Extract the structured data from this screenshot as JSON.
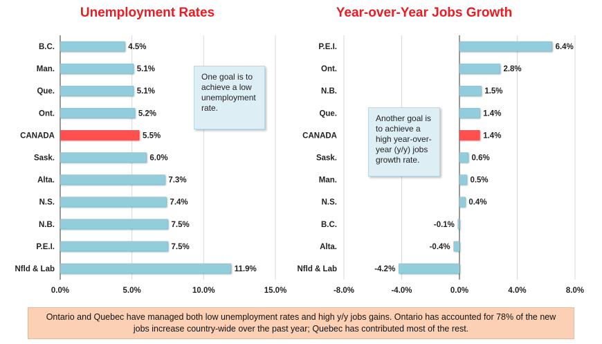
{
  "chart_data": [
    {
      "type": "bar",
      "orientation": "horizontal",
      "title": "Unemployment Rates",
      "categories": [
        "B.C.",
        "Man.",
        "Que.",
        "Ont.",
        "CANADA",
        "Sask.",
        "Alta.",
        "N.S.",
        "N.B.",
        "P.E.I.",
        "Nfld & Lab"
      ],
      "values": [
        4.5,
        5.1,
        5.1,
        5.2,
        5.5,
        6.0,
        7.3,
        7.4,
        7.5,
        7.5,
        11.9
      ],
      "value_labels": [
        "4.5%",
        "5.1%",
        "5.1%",
        "5.2%",
        "5.5%",
        "6.0%",
        "7.3%",
        "7.4%",
        "7.5%",
        "7.5%",
        "11.9%"
      ],
      "xlim": [
        0,
        15
      ],
      "xticks": [
        0,
        5,
        10,
        15
      ],
      "xtick_labels": [
        "0.0%",
        "5.0%",
        "10.0%",
        "15.0%"
      ],
      "highlight": "CANADA",
      "grid": "vertical",
      "colors": {
        "bar": "#92cddc",
        "highlight": "#ff4f4f",
        "title": "#ea1c24"
      },
      "annotation": "One goal is to achieve a low unemployment rate."
    },
    {
      "type": "bar",
      "orientation": "horizontal",
      "title": "Year-over-Year Jobs Growth",
      "categories": [
        "P.E.I.",
        "Ont.",
        "N.B.",
        "Que.",
        "CANADA",
        "Sask.",
        "Man.",
        "N.S.",
        "B.C.",
        "Alta.",
        "Nfld & Lab"
      ],
      "values": [
        6.4,
        2.8,
        1.5,
        1.4,
        1.4,
        0.6,
        0.5,
        0.4,
        -0.1,
        -0.4,
        -4.2
      ],
      "value_labels": [
        "6.4%",
        "2.8%",
        "1.5%",
        "1.4%",
        "1.4%",
        "0.6%",
        "0.5%",
        "0.4%",
        "-0.1%",
        "-0.4%",
        "-4.2%"
      ],
      "xlim": [
        -8,
        8
      ],
      "xticks": [
        -8,
        -4,
        0,
        4,
        8
      ],
      "xtick_labels": [
        "-8.0%",
        "-4.0%",
        "0.0%",
        "4.0%",
        "8.0%"
      ],
      "highlight": "CANADA",
      "grid": "vertical",
      "colors": {
        "bar": "#92cddc",
        "highlight": "#ff4f4f",
        "title": "#ea1c24"
      },
      "annotation": "Another goal is to achieve a high year-over-year (y/y) jobs growth rate."
    }
  ],
  "footer": {
    "text": "Ontario and Quebec have managed both low unemployment rates and high y/y jobs gains. Ontario has accounted for 78% of the new jobs increase country-wide over the past year; Quebec has contributed most of the rest."
  }
}
